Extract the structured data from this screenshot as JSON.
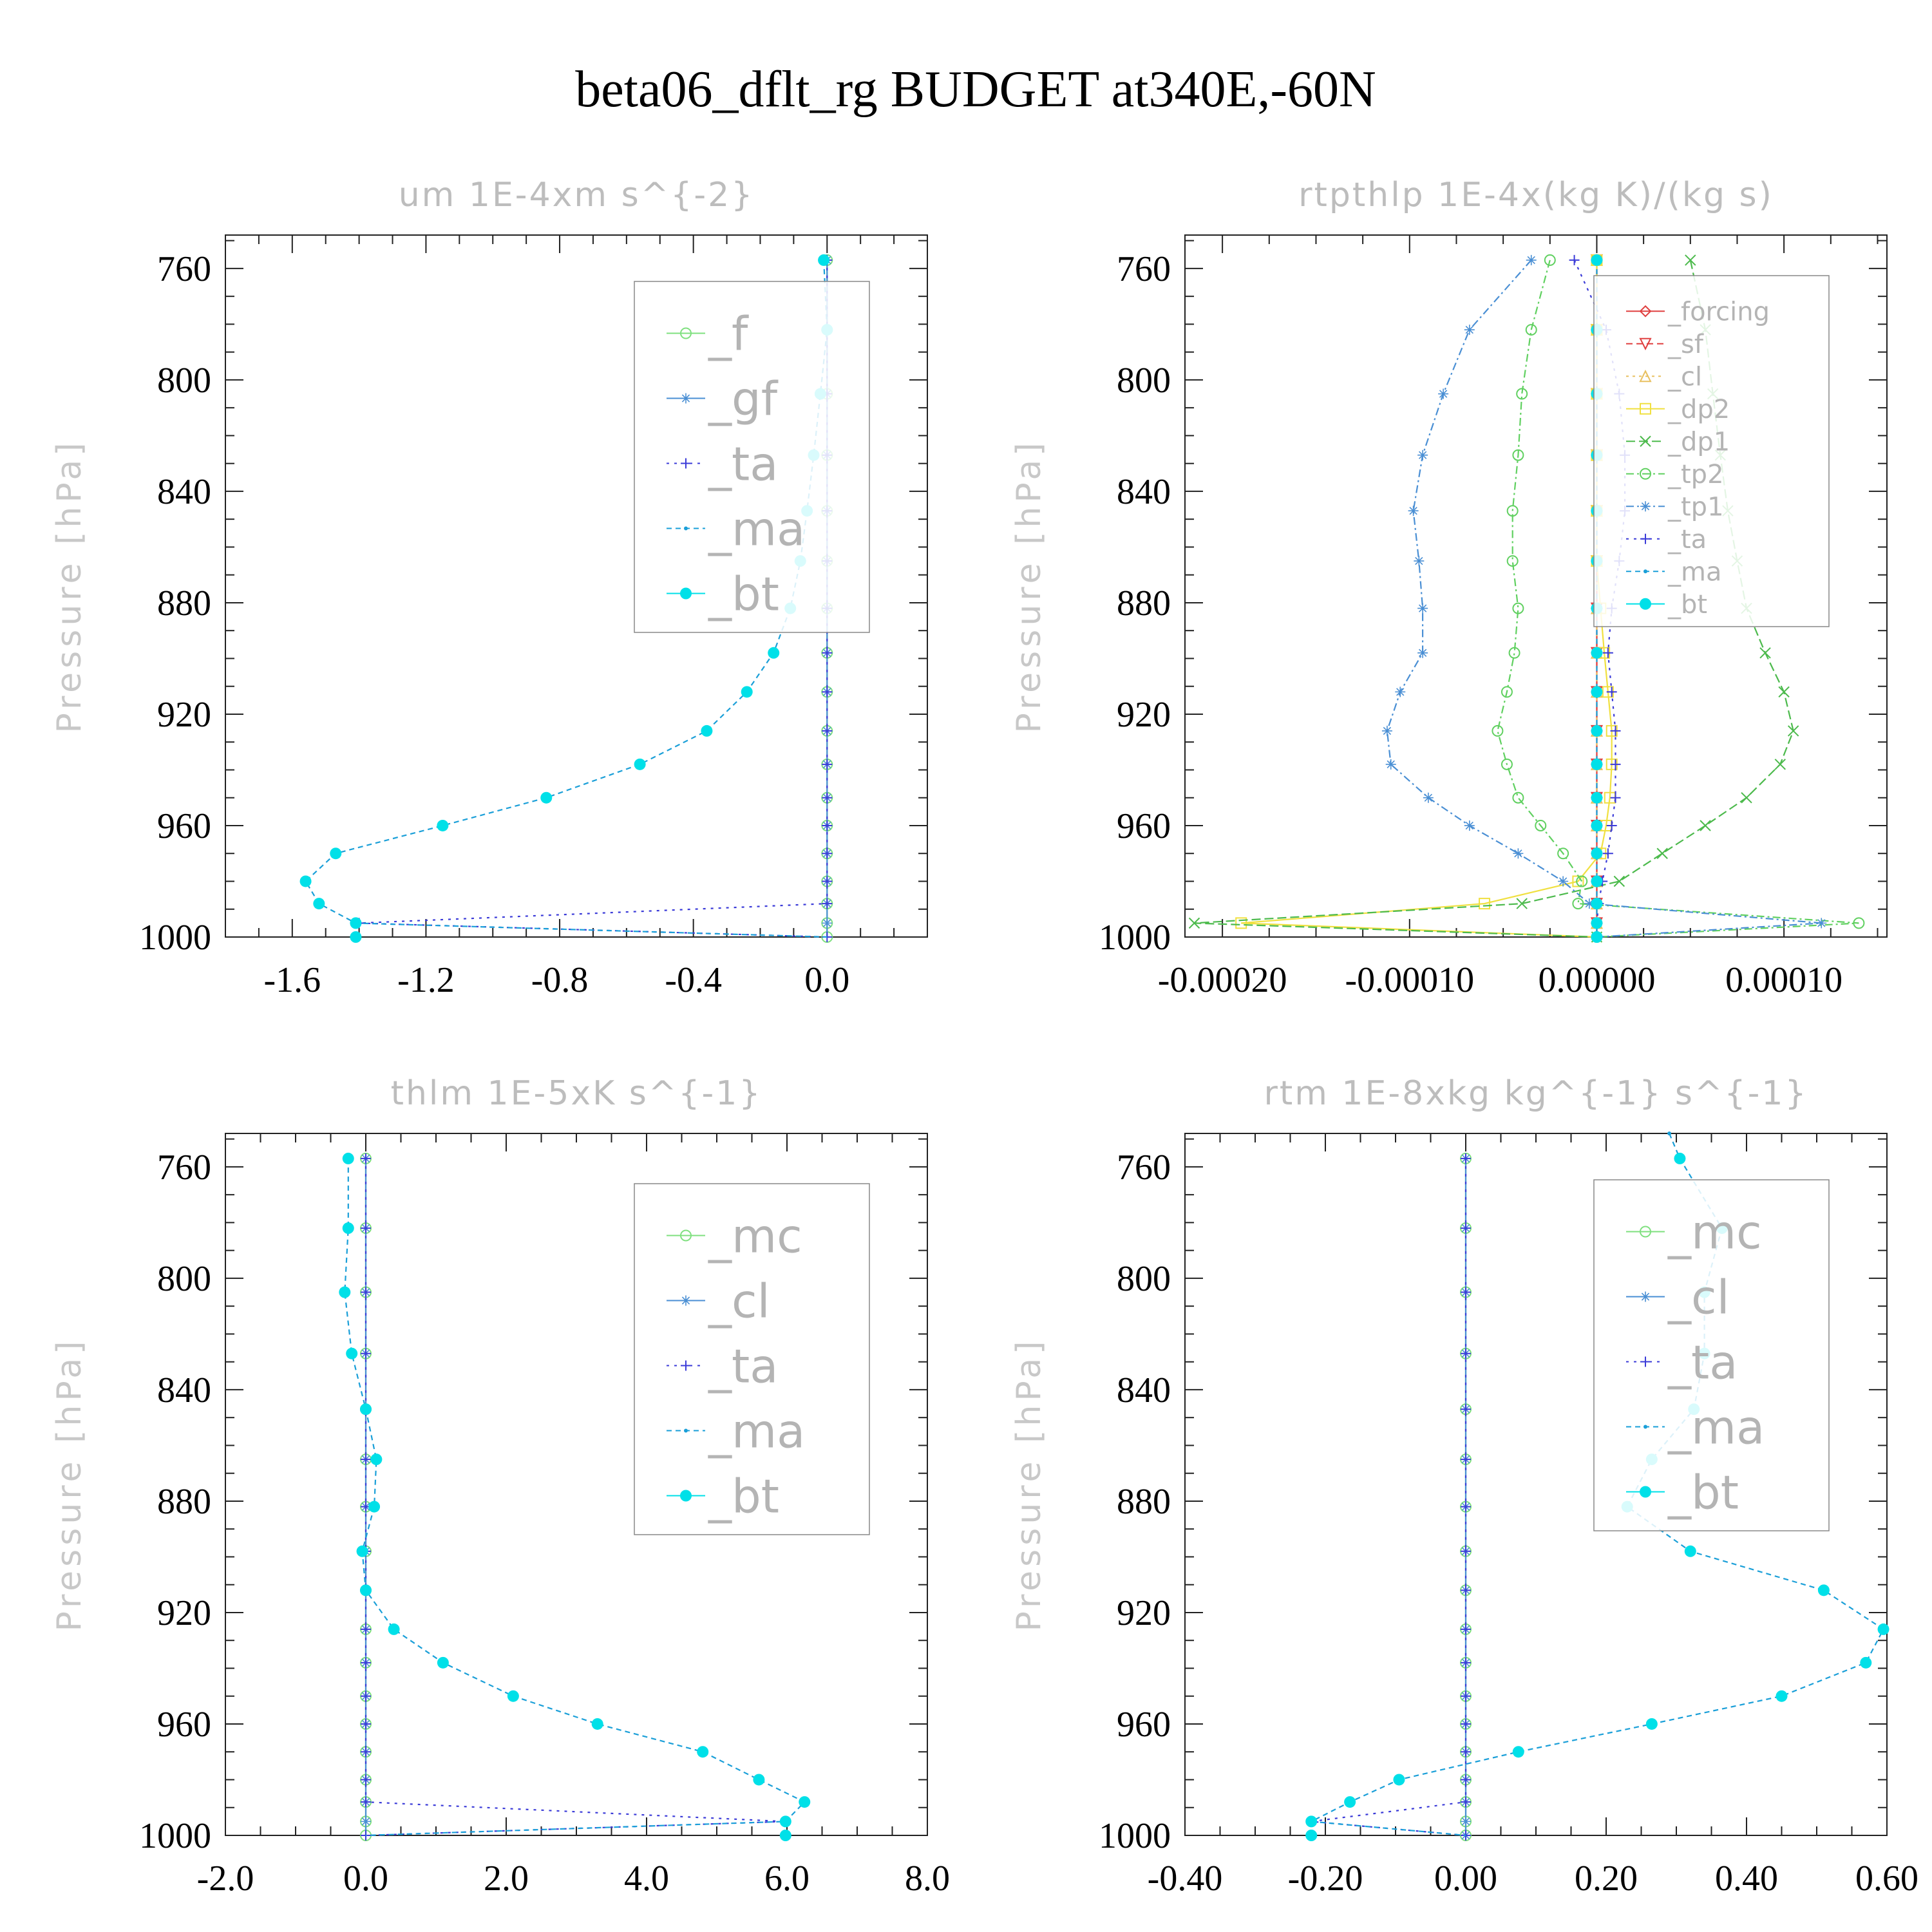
{
  "title": "beta06_dflt_rg  BUDGET at340E,-60N",
  "chart_data": [
    {
      "type": "line",
      "title": "um   1E-4xm s^{-2}",
      "ylabel": "Pressure [hPa]",
      "xlabel": "",
      "xlim": [
        -1.8,
        0.3
      ],
      "ylim": [
        1000,
        748
      ],
      "xticks": [
        -1.6,
        -1.2,
        -0.8,
        -0.4,
        0.0
      ],
      "xtick_labels": [
        "-1.6",
        "-1.2",
        "-0.8",
        "-0.4",
        "0.0"
      ],
      "yticks": [
        760,
        800,
        840,
        880,
        920,
        960,
        1000
      ],
      "ytick_labels": [
        "760",
        "800",
        "840",
        "880",
        "920",
        "960",
        "1000"
      ],
      "legend_position": "top-right",
      "legend_font": 72,
      "y": [
        757,
        782,
        805,
        827,
        847,
        865,
        882,
        898,
        912,
        926,
        938,
        950,
        960,
        970,
        980,
        988,
        995,
        1000
      ],
      "series": [
        {
          "name": "_f",
          "color": "#7fe07f",
          "marker": "circle",
          "dash": "",
          "values": [
            0,
            0,
            0,
            0,
            0,
            0,
            0,
            0,
            0,
            0,
            0,
            0,
            0,
            0,
            0,
            0,
            0,
            0
          ]
        },
        {
          "name": "_gf",
          "color": "#4a8fd4",
          "marker": "star",
          "dash": "",
          "values": [
            0,
            0,
            0,
            0,
            0,
            0,
            0,
            0,
            0,
            0,
            0,
            0,
            0,
            0,
            0,
            0,
            0,
            0
          ]
        },
        {
          "name": "_ta",
          "color": "#3b3bd8",
          "marker": "plus",
          "dash": "4 8",
          "values": [
            0,
            0,
            0,
            0,
            0,
            0,
            0,
            0,
            0,
            0,
            0,
            0,
            0,
            0,
            0,
            0,
            -1.4,
            0
          ]
        },
        {
          "name": "_ma",
          "color": "#1a9fd8",
          "marker": "dot",
          "dash": "8 6",
          "values": [
            -0.01,
            0.0,
            -0.02,
            -0.04,
            -0.06,
            -0.08,
            -0.11,
            -0.16,
            -0.24,
            -0.36,
            -0.56,
            -0.84,
            -1.15,
            -1.47,
            -1.56,
            -1.52,
            -1.41,
            0
          ]
        },
        {
          "name": "_bt",
          "color": "#00e0e8",
          "marker": "bigdot",
          "dash": "none",
          "values": [
            -0.01,
            0.0,
            -0.02,
            -0.04,
            -0.06,
            -0.08,
            -0.11,
            -0.16,
            -0.24,
            -0.36,
            -0.56,
            -0.84,
            -1.15,
            -1.47,
            -1.56,
            -1.52,
            -1.41,
            -1.41
          ]
        }
      ]
    },
    {
      "type": "line",
      "title": "rtpthlp   1E-4x(kg K)/(kg s)",
      "ylabel": "Pressure [hPa]",
      "xlabel": "",
      "xlim": [
        -0.00022,
        0.000155
      ],
      "ylim": [
        1000,
        748
      ],
      "xticks": [
        -0.0002,
        -0.0001,
        0.0,
        0.0001
      ],
      "xtick_labels": [
        "-0.00020",
        "-0.00010",
        "0.00000",
        "0.00010"
      ],
      "yticks": [
        760,
        800,
        840,
        880,
        920,
        960,
        1000
      ],
      "ytick_labels": [
        "760",
        "800",
        "840",
        "880",
        "920",
        "960",
        "1000"
      ],
      "legend_position": "top-right",
      "legend_font": 40,
      "y": [
        757,
        782,
        805,
        827,
        847,
        865,
        882,
        898,
        912,
        926,
        938,
        950,
        960,
        970,
        980,
        988,
        995,
        1000
      ],
      "series": [
        {
          "name": "_forcing",
          "color": "#e04040",
          "marker": "diamond",
          "dash": "",
          "values": [
            0,
            0,
            0,
            0,
            0,
            0,
            0,
            0,
            0,
            0,
            0,
            0,
            0,
            0,
            0,
            0,
            0,
            0
          ]
        },
        {
          "name": "_sf",
          "color": "#e04040",
          "marker": "tri-down",
          "dash": "10 6",
          "values": [
            0,
            0,
            0,
            0,
            0,
            0,
            0,
            0,
            0,
            0,
            0,
            0,
            0,
            0,
            0,
            0,
            0,
            0
          ]
        },
        {
          "name": "_cl",
          "color": "#e8c060",
          "marker": "tri-up",
          "dash": "4 6",
          "values": [
            0,
            0,
            0,
            0,
            0,
            0,
            0,
            0,
            0,
            0,
            0,
            0,
            0,
            0,
            0,
            0,
            0,
            0
          ]
        },
        {
          "name": "_dp2",
          "color": "#f0e040",
          "marker": "square",
          "dash": "",
          "values": [
            0,
            0,
            0,
            0,
            0,
            0,
            2e-06,
            4e-06,
            6e-06,
            8e-06,
            8e-06,
            7e-06,
            5e-06,
            2e-06,
            -1e-05,
            -6e-05,
            -0.00019,
            0
          ]
        },
        {
          "name": "_dp1",
          "color": "#4cba4c",
          "marker": "x",
          "dash": "14 6",
          "values": [
            5e-05,
            5.8e-05,
            6.2e-05,
            6.6e-05,
            7e-05,
            7.5e-05,
            8e-05,
            9e-05,
            0.0001,
            0.000105,
            9.8e-05,
            8e-05,
            5.8e-05,
            3.5e-05,
            1.2e-05,
            -4e-05,
            -0.000215,
            0
          ]
        },
        {
          "name": "_tp2",
          "color": "#60d060",
          "marker": "circle",
          "dash": "12 5 3 5",
          "values": [
            -2.5e-05,
            -3.5e-05,
            -4e-05,
            -4.2e-05,
            -4.5e-05,
            -4.5e-05,
            -4.2e-05,
            -4.4e-05,
            -4.8e-05,
            -5.3e-05,
            -4.8e-05,
            -4.2e-05,
            -3e-05,
            -1.8e-05,
            -8e-06,
            -1e-05,
            0.00014,
            0
          ]
        },
        {
          "name": "_tp1",
          "color": "#4a8fd4",
          "marker": "star",
          "dash": "12 5 3 5",
          "values": [
            -3.5e-05,
            -6.8e-05,
            -8.2e-05,
            -9.3e-05,
            -9.8e-05,
            -9.5e-05,
            -9.3e-05,
            -9.3e-05,
            -0.000105,
            -0.000112,
            -0.00011,
            -9e-05,
            -6.8e-05,
            -4.2e-05,
            -1.8e-05,
            -4e-06,
            0.00012,
            0
          ]
        },
        {
          "name": "_ta",
          "color": "#3b3bd8",
          "marker": "plus",
          "dash": "4 8",
          "values": [
            -1.2e-05,
            5e-06,
            1.2e-05,
            1.5e-05,
            1.5e-05,
            1.2e-05,
            8e-06,
            6e-06,
            8e-06,
            1e-05,
            1e-05,
            1e-05,
            8e-06,
            6e-06,
            3e-06,
            1e-06,
            0,
            0
          ]
        },
        {
          "name": "_ma",
          "color": "#1a9fd8",
          "marker": "dot",
          "dash": "8 6",
          "values": [
            0,
            0,
            0,
            0,
            0,
            0,
            0,
            0,
            0,
            0,
            0,
            0,
            0,
            0,
            0,
            0,
            0,
            0
          ]
        },
        {
          "name": "_bt",
          "color": "#00e0e8",
          "marker": "bigdot",
          "dash": "none",
          "values": [
            0,
            0,
            0,
            0,
            0,
            0,
            0,
            0,
            0,
            0,
            0,
            0,
            0,
            0,
            0,
            0,
            0,
            0
          ]
        }
      ]
    },
    {
      "type": "line",
      "title": "thlm   1E-5xK s^{-1}",
      "ylabel": "Pressure [hPa]",
      "xlabel": "",
      "xlim": [
        -2.0,
        8.0
      ],
      "ylim": [
        1000,
        748
      ],
      "xticks": [
        -2.0,
        0.0,
        2.0,
        4.0,
        6.0,
        8.0
      ],
      "xtick_labels": [
        "-2.0",
        "0.0",
        "2.0",
        "4.0",
        "6.0",
        "8.0"
      ],
      "yticks": [
        760,
        800,
        840,
        880,
        920,
        960,
        1000
      ],
      "ytick_labels": [
        "760",
        "800",
        "840",
        "880",
        "920",
        "960",
        "1000"
      ],
      "legend_position": "top-right",
      "legend_font": 72,
      "y": [
        757,
        782,
        805,
        827,
        847,
        865,
        882,
        898,
        912,
        926,
        938,
        950,
        960,
        970,
        980,
        988,
        995,
        1000
      ],
      "series": [
        {
          "name": "_mc",
          "color": "#7fe07f",
          "marker": "circle",
          "dash": "",
          "values": [
            0,
            0,
            0,
            0,
            0,
            0,
            0,
            0,
            0,
            0,
            0,
            0,
            0,
            0,
            0,
            0,
            0,
            0
          ]
        },
        {
          "name": "_cl",
          "color": "#4a8fd4",
          "marker": "star",
          "dash": "",
          "values": [
            0,
            0,
            0,
            0,
            0,
            0,
            0,
            0,
            0,
            0,
            0,
            0,
            0,
            0,
            0,
            0,
            0,
            0
          ]
        },
        {
          "name": "_ta",
          "color": "#3b3bd8",
          "marker": "plus",
          "dash": "4 8",
          "values": [
            0,
            0,
            0,
            0,
            0,
            0,
            0,
            0,
            0,
            0,
            0,
            0,
            0,
            0,
            0,
            0,
            5.98,
            0
          ]
        },
        {
          "name": "_ma",
          "color": "#1a9fd8",
          "marker": "dot",
          "dash": "8 6",
          "values": [
            -0.25,
            -0.25,
            -0.3,
            -0.2,
            0.0,
            0.15,
            0.12,
            -0.05,
            0.0,
            0.4,
            1.1,
            2.1,
            3.3,
            4.8,
            5.6,
            6.25,
            5.98,
            0
          ]
        },
        {
          "name": "_bt",
          "color": "#00e0e8",
          "marker": "bigdot",
          "dash": "none",
          "values": [
            -0.25,
            -0.25,
            -0.3,
            -0.2,
            0.0,
            0.15,
            0.12,
            -0.05,
            0.0,
            0.4,
            1.1,
            2.1,
            3.3,
            4.8,
            5.6,
            6.25,
            5.98,
            5.98
          ]
        }
      ]
    },
    {
      "type": "line",
      "title": "rtm   1E-8xkg kg^{-1} s^{-1}",
      "ylabel": "Pressure [hPa]",
      "xlabel": "",
      "xlim": [
        -0.4,
        0.6
      ],
      "ylim": [
        1000,
        748
      ],
      "xticks": [
        -0.4,
        -0.2,
        0.0,
        0.2,
        0.4,
        0.6
      ],
      "xtick_labels": [
        "-0.40",
        "-0.20",
        "0.00",
        "0.20",
        "0.40",
        "0.60"
      ],
      "yticks": [
        760,
        800,
        840,
        880,
        920,
        960,
        1000
      ],
      "ytick_labels": [
        "760",
        "800",
        "840",
        "880",
        "920",
        "960",
        "1000"
      ],
      "legend_position": "top-right",
      "legend_font": 72,
      "y": [
        748,
        757,
        782,
        805,
        827,
        847,
        865,
        882,
        898,
        912,
        926,
        938,
        950,
        960,
        970,
        980,
        988,
        995,
        1000
      ],
      "series": [
        {
          "name": "_mc",
          "color": "#7fe07f",
          "marker": "circle",
          "dash": "",
          "values": [
            null,
            0,
            0,
            0,
            0,
            0,
            0,
            0,
            0,
            0,
            0,
            0,
            0,
            0,
            0,
            0,
            0,
            0,
            0
          ]
        },
        {
          "name": "_cl",
          "color": "#4a8fd4",
          "marker": "star",
          "dash": "",
          "values": [
            null,
            0,
            0,
            0,
            0,
            0,
            0,
            0,
            0,
            0,
            0,
            0,
            0,
            0,
            0,
            0,
            0,
            0,
            0
          ]
        },
        {
          "name": "_ta",
          "color": "#3b3bd8",
          "marker": "plus",
          "dash": "4 8",
          "values": [
            null,
            0,
            0,
            0,
            0,
            0,
            0,
            0,
            0,
            0,
            0,
            0,
            0,
            0,
            0,
            0,
            0,
            -0.22,
            0
          ]
        },
        {
          "name": "_ma",
          "color": "#1a9fd8",
          "marker": "dot",
          "dash": "8 6",
          "values": [
            0.29,
            0.305,
            0.365,
            0.34,
            0.34,
            0.325,
            0.265,
            0.23,
            0.32,
            0.51,
            0.595,
            0.57,
            0.45,
            0.265,
            0.075,
            -0.095,
            -0.165,
            -0.22,
            0
          ]
        },
        {
          "name": "_bt",
          "color": "#00e0e8",
          "marker": "bigdot",
          "dash": "none",
          "values": [
            null,
            0.305,
            0.365,
            0.34,
            0.34,
            0.325,
            0.265,
            0.23,
            0.32,
            0.51,
            0.595,
            0.57,
            0.45,
            0.265,
            0.075,
            -0.095,
            -0.165,
            -0.22,
            -0.22
          ]
        }
      ]
    }
  ]
}
